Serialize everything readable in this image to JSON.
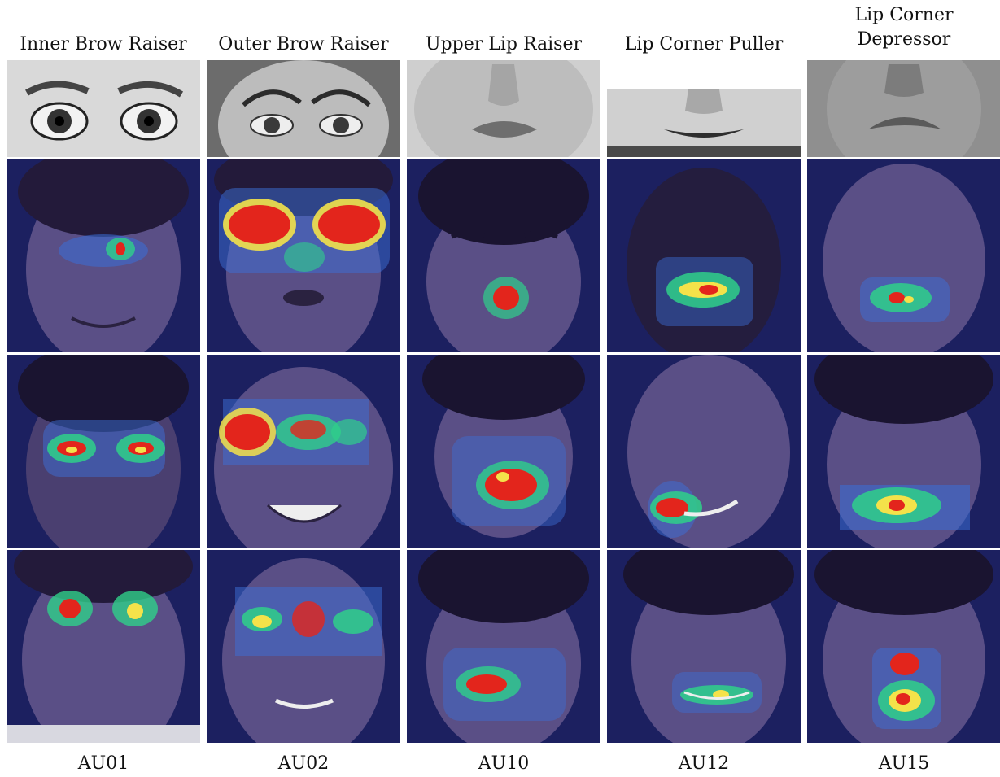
{
  "columns": [
    {
      "title": "Inner Brow Raiser",
      "code": "AU01",
      "heat": "brows-inner"
    },
    {
      "title": "Outer Brow Raiser",
      "code": "AU02",
      "heat": "brows-outer"
    },
    {
      "title": "Upper Lip Raiser",
      "code": "AU10",
      "heat": "upper-lip"
    },
    {
      "title": "Lip Corner Puller",
      "code": "AU12",
      "heat": "lip-corners"
    },
    {
      "title_line1": "Lip Corner",
      "title_line2": "Depressor",
      "code": "AU15",
      "heat": "lower-lip"
    }
  ],
  "colors": {
    "tile_background": "#1c2060",
    "face": "#5a4f86",
    "heat_low": "#3b6fd8",
    "heat_mid": "#2fd08a",
    "heat_high": "#f4e24a",
    "heat_peak": "#e3251c"
  }
}
